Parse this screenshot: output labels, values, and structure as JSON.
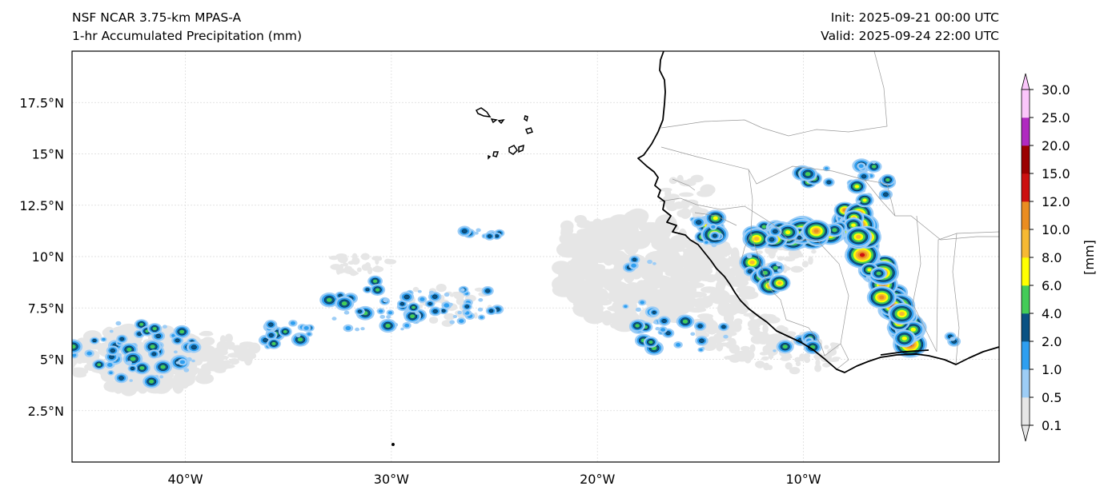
{
  "header": {
    "model": "NSF NCAR 3.75-km MPAS-A",
    "field": "1-hr Accumulated Precipitation (mm)",
    "init": "Init: 2025-09-21 00:00 UTC",
    "valid": "Valid: 2025-09-24 22:00 UTC"
  },
  "map": {
    "lon_range": [
      -45.5,
      -0.5
    ],
    "lat_range": [
      0,
      20
    ],
    "lat_ticks": [
      {
        "value": 2.5,
        "label": "2.5°N"
      },
      {
        "value": 5,
        "label": "5°N"
      },
      {
        "value": 7.5,
        "label": "7.5°N"
      },
      {
        "value": 10,
        "label": "10°N"
      },
      {
        "value": 12.5,
        "label": "12.5°N"
      },
      {
        "value": 15,
        "label": "15°N"
      },
      {
        "value": 17.5,
        "label": "17.5°N"
      }
    ],
    "lon_ticks": [
      {
        "value": -40,
        "label": "40°W"
      },
      {
        "value": -30,
        "label": "30°W"
      },
      {
        "value": -20,
        "label": "20°W"
      },
      {
        "value": -10,
        "label": "10°W"
      }
    ],
    "gridlines": true,
    "coastline_color": "#000000",
    "border_color": "#999999"
  },
  "colorbar": {
    "unit": "[mm]",
    "extend": "both",
    "levels": [
      "0.1",
      "0.5",
      "1.0",
      "2.0",
      "4.0",
      "6.0",
      "8.0",
      "10.0",
      "12.0",
      "15.0",
      "20.0",
      "25.0",
      "30.0"
    ],
    "colors": [
      "#e6e6e6",
      "#9dcdf6",
      "#2e9ff0",
      "#0a5283",
      "#44cc58",
      "#ffff00",
      "#f6b933",
      "#ea8d21",
      "#cc1010",
      "#9b0000",
      "#b02ac0",
      "#fbc6fb"
    ]
  }
}
